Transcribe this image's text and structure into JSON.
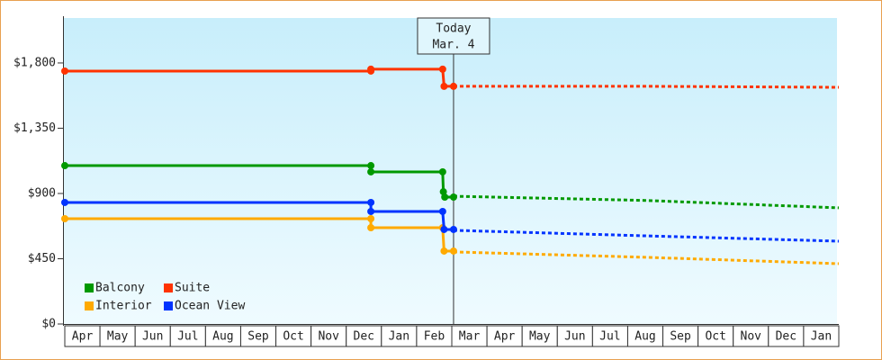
{
  "chart_data": {
    "type": "line",
    "xlim": [
      0,
      22
    ],
    "ylim": [
      0,
      2110
    ],
    "xticks": [
      {
        "value": 0,
        "label": "Apr"
      },
      {
        "value": 1,
        "label": "May"
      },
      {
        "value": 2,
        "label": "Jun"
      },
      {
        "value": 3,
        "label": "Jul"
      },
      {
        "value": 4,
        "label": "Aug"
      },
      {
        "value": 5,
        "label": "Sep"
      },
      {
        "value": 6,
        "label": "Oct"
      },
      {
        "value": 7,
        "label": "Nov"
      },
      {
        "value": 8,
        "label": "Dec"
      },
      {
        "value": 9,
        "label": "Jan"
      },
      {
        "value": 10,
        "label": "Feb"
      },
      {
        "value": 11,
        "label": "Mar"
      },
      {
        "value": 12,
        "label": "Apr"
      },
      {
        "value": 13,
        "label": "May"
      },
      {
        "value": 14,
        "label": "Jun"
      },
      {
        "value": 15,
        "label": "Jul"
      },
      {
        "value": 16,
        "label": "Aug"
      },
      {
        "value": 17,
        "label": "Sep"
      },
      {
        "value": 18,
        "label": "Oct"
      },
      {
        "value": 19,
        "label": "Nov"
      },
      {
        "value": 20,
        "label": "Dec"
      },
      {
        "value": 21,
        "label": "Jan"
      }
    ],
    "yticks": [
      {
        "value": 0,
        "label": "$0"
      },
      {
        "value": 450,
        "label": "$450"
      },
      {
        "value": 900,
        "label": "$900"
      },
      {
        "value": 1350,
        "label": "$1,350"
      },
      {
        "value": 1800,
        "label": "$1,800"
      }
    ],
    "today": {
      "x": 11.05,
      "label": "Today",
      "date": "Mar. 4"
    },
    "series": [
      {
        "name": "Balcony",
        "color": "#009900",
        "x": [
          0,
          8.7,
          8.7,
          10.74,
          10.76,
          10.8,
          11.05
        ],
        "values": [
          1092,
          1092,
          1049,
          1049,
          912,
          875,
          875
        ],
        "forecast_x": [
          11.05,
          16.5,
          22
        ],
        "forecast_values": [
          881,
          852,
          801
        ]
      },
      {
        "name": "Suite",
        "color": "#ff3300",
        "x": [
          0,
          8.7,
          8.7,
          10.74,
          10.78,
          11.05
        ],
        "values": [
          1744,
          1744,
          1757,
          1757,
          1639,
          1639
        ],
        "forecast_x": [
          11.05,
          16.5,
          22
        ],
        "forecast_values": [
          1639,
          1639,
          1632
        ]
      },
      {
        "name": "Interior",
        "color": "#ffaa00",
        "x": [
          0,
          8.7,
          8.7,
          10.74,
          10.78,
          11.05
        ],
        "values": [
          726,
          726,
          664,
          664,
          503,
          503
        ],
        "forecast_x": [
          11.05,
          16.5,
          22
        ],
        "forecast_values": [
          497,
          460,
          416
        ]
      },
      {
        "name": "Ocean View",
        "color": "#0033ff",
        "x": [
          0,
          8.7,
          8.7,
          10.74,
          10.78,
          11.05
        ],
        "values": [
          838,
          838,
          776,
          776,
          652,
          652
        ],
        "forecast_x": [
          11.05,
          16.5,
          22
        ],
        "forecast_values": [
          646,
          608,
          571
        ]
      }
    ]
  }
}
